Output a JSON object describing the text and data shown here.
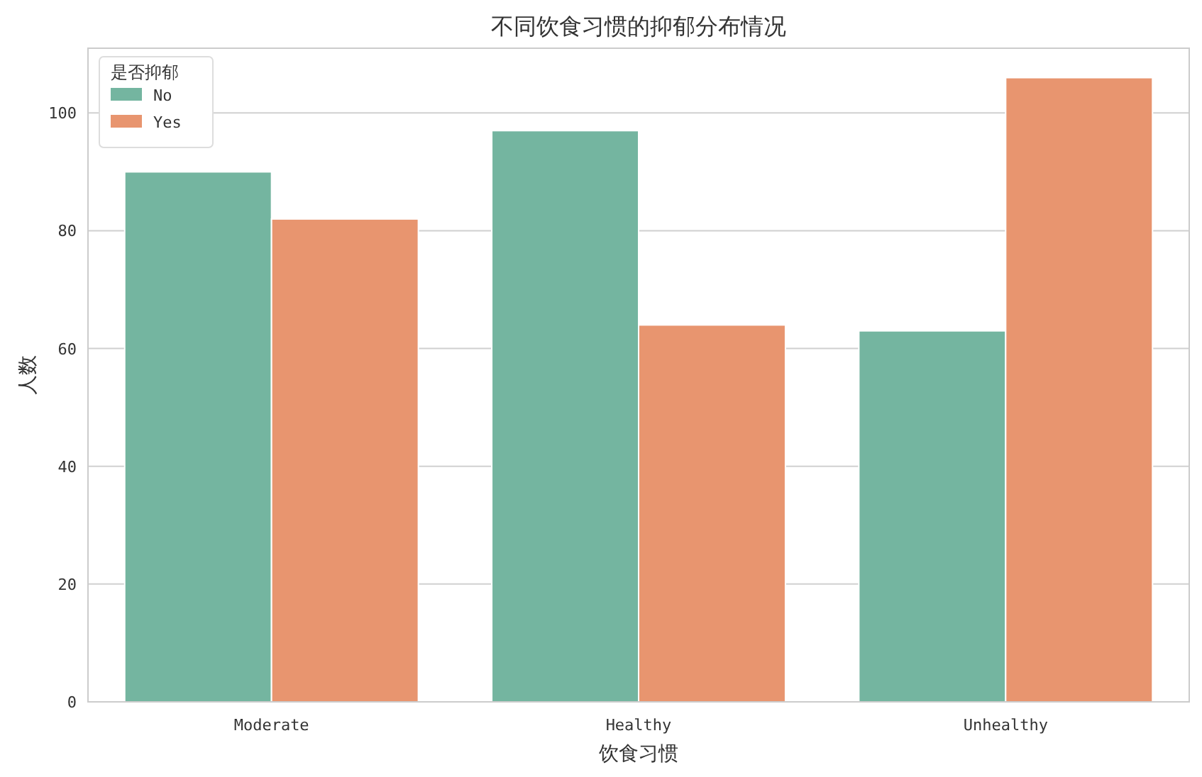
{
  "chart_data": {
    "type": "bar",
    "title": "不同饮食习惯的抑郁分布情况",
    "xlabel": "饮食习惯",
    "ylabel": "人数",
    "legend_title": "是否抑郁",
    "categories": [
      "Moderate",
      "Healthy",
      "Unhealthy"
    ],
    "series": [
      {
        "name": "No",
        "color": "#74b5a0",
        "values": [
          90,
          97,
          63
        ]
      },
      {
        "name": "Yes",
        "color": "#e8956f",
        "values": [
          82,
          64,
          106
        ]
      }
    ],
    "ylim": [
      0,
      111
    ],
    "yticks": [
      0,
      20,
      40,
      60,
      80,
      100
    ],
    "grid": "y",
    "legend": "top left"
  }
}
